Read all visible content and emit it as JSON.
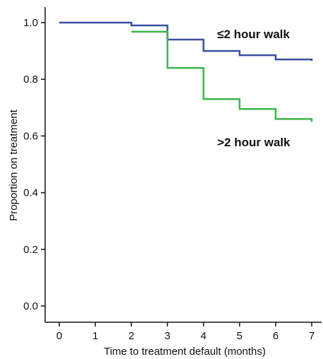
{
  "chart_data": {
    "type": "line",
    "step": true,
    "xlabel": "Time to treatment default (months)",
    "ylabel": "Proportion on treatment",
    "xlim": [
      0,
      7
    ],
    "ylim": [
      0,
      1
    ],
    "xticks": [
      "0",
      "1",
      "2",
      "3",
      "4",
      "5",
      "6",
      "7"
    ],
    "yticks": [
      "0.0",
      "0.2",
      "0.4",
      "0.6",
      "0.8",
      "1.0"
    ],
    "grid": false,
    "series": [
      {
        "name": "≤2 hour walk",
        "color": "#3b4fa0",
        "x": [
          0,
          2,
          3,
          4,
          5,
          6,
          7
        ],
        "y": [
          1.0,
          0.99,
          0.94,
          0.9,
          0.885,
          0.87,
          0.865
        ]
      },
      {
        "name": ">2 hour walk",
        "color": "#3bb54a",
        "x": [
          2,
          3,
          4,
          5,
          6,
          7
        ],
        "y": [
          0.968,
          0.84,
          0.73,
          0.695,
          0.66,
          0.65
        ]
      }
    ]
  }
}
